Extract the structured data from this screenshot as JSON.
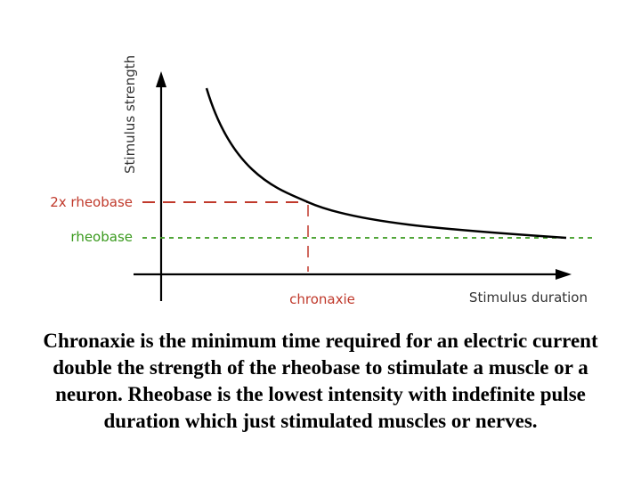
{
  "diagram": {
    "y_axis_label": "Stimulus strength",
    "x_axis_label": "Stimulus duration",
    "labels": {
      "two_x_rheobase": "2x rheobase",
      "rheobase": "rheobase",
      "chronaxie": "chronaxie"
    },
    "colors": {
      "axis": "#000000",
      "curve": "#000000",
      "two_x_rheobase": "#c0392b",
      "rheobase": "#3a9a1e",
      "chronaxie": "#c0392b",
      "axis_label": "#333333"
    }
  },
  "caption": "Chronaxie is the minimum time required for an electric current double the strength of the rheobase to stimulate a muscle or a neuron. Rheobase is the lowest intensity with indefinite pulse duration which just stimulated muscles or nerves."
}
